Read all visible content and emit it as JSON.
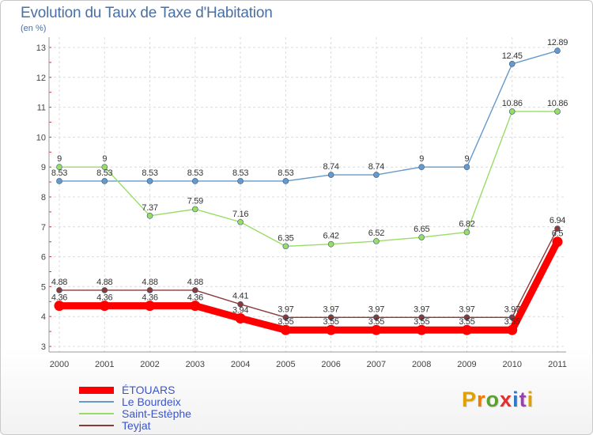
{
  "header": {
    "title": "Evolution du Taux de Taxe d'Habitation",
    "unit": "(en %)"
  },
  "logo": {
    "text": "Proxiti",
    "letter_colors": [
      "#e0a000",
      "#f07a00",
      "#5aa02c",
      "#e03030",
      "#2f78c8",
      "#9c3fb0",
      "#e0a000"
    ]
  },
  "chart_data": {
    "type": "line",
    "x": [
      "2000",
      "2001",
      "2002",
      "2003",
      "2004",
      "2005",
      "2006",
      "2007",
      "2008",
      "2009",
      "2010",
      "2011"
    ],
    "ylim": [
      3,
      13
    ],
    "yticks": [
      "3",
      "4",
      "5",
      "6",
      "7",
      "8",
      "9",
      "10",
      "11",
      "12",
      "13"
    ],
    "grid": true,
    "legend_position": "bottom-left",
    "series": [
      {
        "name": "ÉTOUARS",
        "color": "#ff0000",
        "values": [
          4.36,
          4.36,
          4.36,
          4.36,
          3.94,
          3.55,
          3.55,
          3.55,
          3.55,
          3.55,
          3.55,
          6.5
        ],
        "labels": [
          "4.36",
          "4.36",
          "4.36",
          "4.36",
          "3.94",
          "3.55",
          "3.55",
          "3.55",
          "3.55",
          "3.55",
          "3.55",
          "6.5"
        ]
      },
      {
        "name": "Le Bourdeix",
        "color": "#6699cc",
        "values": [
          8.53,
          8.53,
          8.53,
          8.53,
          8.53,
          8.53,
          8.74,
          8.74,
          9,
          9,
          12.45,
          12.89
        ],
        "labels": [
          "8.53",
          "8.53",
          "8.53",
          "8.53",
          "8.53",
          "8.53",
          "8.74",
          "8.74",
          "9",
          "9",
          "12.45",
          "12.89"
        ]
      },
      {
        "name": "Saint-Estèphe",
        "color": "#99dd66",
        "values": [
          9,
          9,
          7.37,
          7.59,
          7.16,
          6.35,
          6.42,
          6.52,
          6.65,
          6.82,
          10.86,
          10.86
        ],
        "labels": [
          "9",
          "9",
          "7.37",
          "7.59",
          "7.16",
          "6.35",
          "6.42",
          "6.52",
          "6.65",
          "6.82",
          "10.86",
          "10.86"
        ]
      },
      {
        "name": "Teyjat",
        "color": "#8b3a3a",
        "values": [
          4.88,
          4.88,
          4.88,
          4.88,
          4.41,
          3.97,
          3.97,
          3.97,
          3.97,
          3.97,
          3.97,
          6.94
        ],
        "labels": [
          "4.88",
          "4.88",
          "4.88",
          "4.88",
          "4.41",
          "3.97",
          "3.97",
          "3.97",
          "3.97",
          "3.97",
          "3.97",
          "6.94"
        ]
      }
    ]
  }
}
